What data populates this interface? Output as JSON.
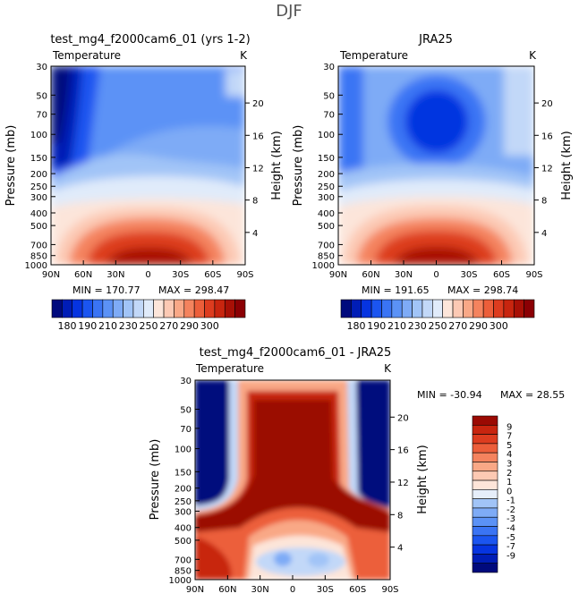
{
  "figure": {
    "title": "DJF"
  },
  "colors": {
    "blue": [
      "#000a7d",
      "#001db6",
      "#0634e0",
      "#1b55f0",
      "#3a74f4",
      "#5b92f6",
      "#7eabf6",
      "#a1c4f7",
      "#c2d8f8",
      "#e0ebfa"
    ],
    "red": [
      "#fce5da",
      "#fcc9b4",
      "#f9a887",
      "#f4835e",
      "#ec5e3a",
      "#dd3c1f",
      "#c8250f",
      "#a81006",
      "#8b0004"
    ],
    "diffColors": [
      "#000a7d",
      "#001db6",
      "#0634e0",
      "#1b55f0",
      "#3a74f4",
      "#5b92f6",
      "#7eabf6",
      "#a1c4f7",
      "#c2d8f8",
      "#e6eefa",
      "#fde5d9",
      "#fcc9b3",
      "#f9a886",
      "#f4835e",
      "#ec5e3a",
      "#dd3c1f",
      "#c8250f",
      "#9b0a03"
    ]
  },
  "chart_data": [
    {
      "type": "heatmap",
      "title": "test_mg4_f2000cam6_01 (yrs 1-2)",
      "variable": "Temperature",
      "units": "K",
      "ylabel": "Pressure (mb)",
      "ylabel_right": "Height (km)",
      "x_ticks": [
        "90N",
        "60N",
        "30N",
        "0",
        "30S",
        "60S",
        "90S"
      ],
      "y_ticks": [
        "30",
        "50",
        "70",
        "100",
        "150",
        "200",
        "250",
        "300",
        "400",
        "500",
        "700",
        "850",
        "1000"
      ],
      "height_ticks": [
        "20",
        "16",
        "12",
        "8",
        "4"
      ],
      "min_label": "MIN = 170.77",
      "max_label": "MAX = 298.47",
      "min": 170.77,
      "max": 298.47
    },
    {
      "type": "heatmap",
      "title": "JRA25",
      "variable": "Temperature",
      "units": "K",
      "ylabel": "Pressure (mb)",
      "ylabel_right": "Height (km)",
      "x_ticks": [
        "90N",
        "60N",
        "30N",
        "0",
        "30S",
        "60S",
        "90S"
      ],
      "y_ticks": [
        "30",
        "50",
        "70",
        "100",
        "150",
        "200",
        "250",
        "300",
        "400",
        "500",
        "700",
        "850",
        "1000"
      ],
      "height_ticks": [
        "20",
        "16",
        "12",
        "8",
        "4"
      ],
      "min_label": "MIN = 191.65",
      "max_label": "MAX = 298.74",
      "min": 191.65,
      "max": 298.74
    },
    {
      "type": "heatmap",
      "title": "test_mg4_f2000cam6_01 - JRA25",
      "variable": "Temperature",
      "units": "K",
      "ylabel": "Pressure (mb)",
      "ylabel_right": "Height (km)",
      "x_ticks": [
        "90N",
        "60N",
        "30N",
        "0",
        "30S",
        "60S",
        "90S"
      ],
      "y_ticks": [
        "30",
        "50",
        "70",
        "100",
        "150",
        "200",
        "250",
        "300",
        "400",
        "500",
        "700",
        "850",
        "1000"
      ],
      "height_ticks": [
        "20",
        "16",
        "12",
        "8",
        "4"
      ],
      "min_label": "MIN = -30.94",
      "max_label": "MAX =  28.55",
      "min": -30.94,
      "max": 28.55
    }
  ],
  "colorbar_abs": {
    "labels": [
      "180",
      "190",
      "210",
      "230",
      "250",
      "270",
      "290",
      "300"
    ]
  },
  "colorbar_diff": {
    "labels": [
      "9",
      "7",
      "5",
      "4",
      "3",
      "2",
      "1",
      "0",
      "-1",
      "-2",
      "-3",
      "-4",
      "-5",
      "-7",
      "-9"
    ]
  }
}
